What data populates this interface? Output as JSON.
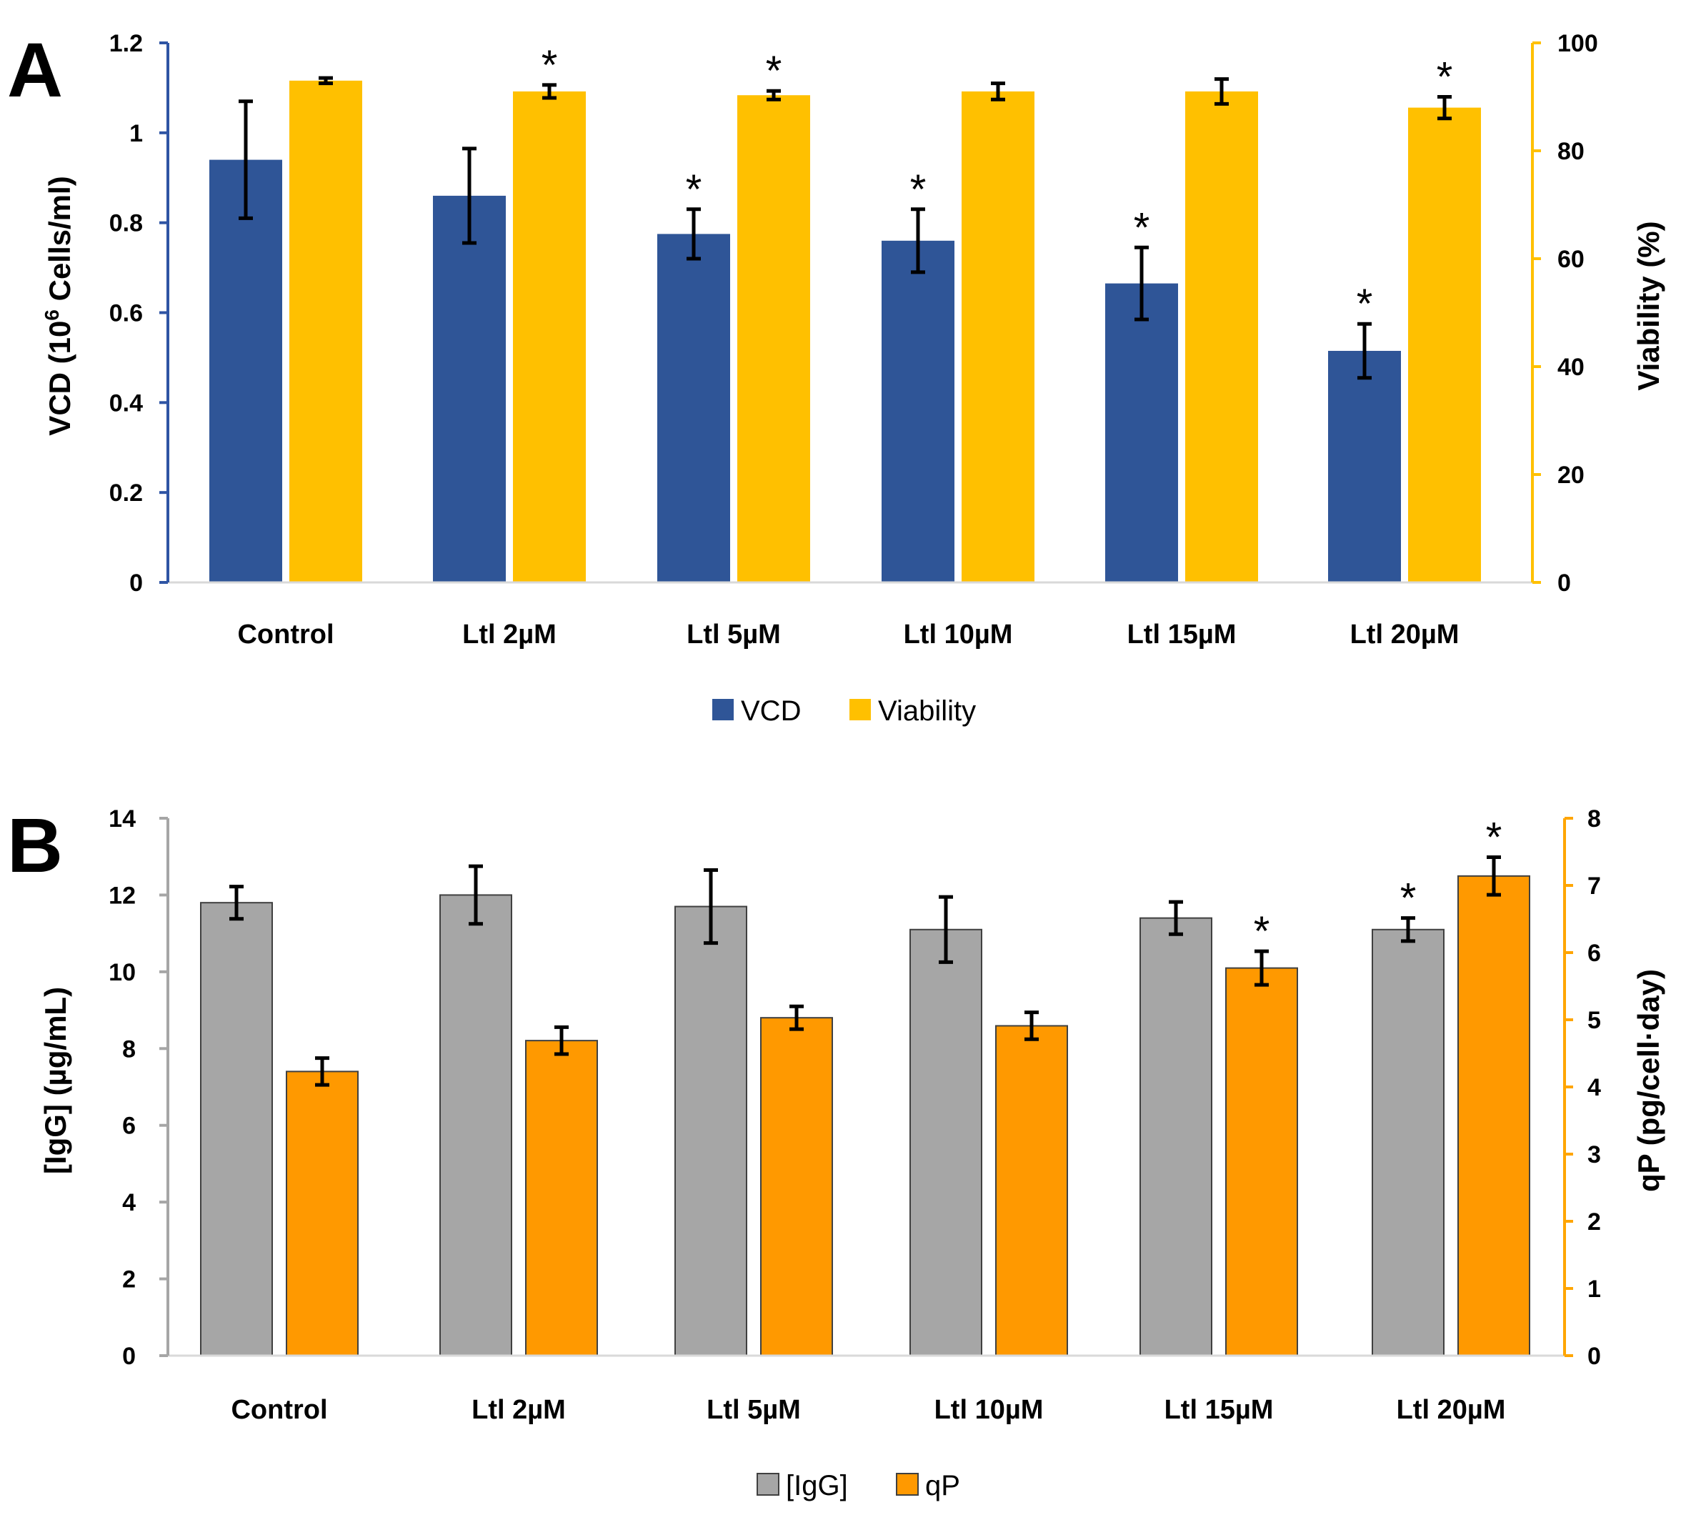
{
  "chart_data": [
    {
      "panel": "A",
      "type": "bar",
      "categories": [
        "Control",
        "Ltl 2µM",
        "Ltl 5µM",
        "Ltl 10µM",
        "Ltl 15µM",
        "Ltl 20µM"
      ],
      "left_axis": {
        "label_prefix": "VCD (10",
        "label_sup": "6",
        "label_suffix": " Cells/ml)",
        "ticks": [
          "0",
          "0.2",
          "0.4",
          "0.6",
          "0.8",
          "1",
          "1.2"
        ],
        "ylim": [
          0,
          1.2
        ],
        "color": "#2f55a4"
      },
      "right_axis": {
        "label": "Viability (%)",
        "ticks": [
          "0",
          "20",
          "40",
          "60",
          "80",
          "100"
        ],
        "ylim": [
          0,
          100
        ],
        "color": "#ffc000"
      },
      "series": [
        {
          "name": "VCD",
          "axis": "left",
          "color": "#2f5597",
          "values": [
            0.94,
            0.86,
            0.775,
            0.76,
            0.665,
            0.515
          ],
          "errors": [
            0.13,
            0.105,
            0.055,
            0.07,
            0.08,
            0.06
          ],
          "significant": [
            false,
            false,
            true,
            true,
            true,
            true
          ]
        },
        {
          "name": "Viability",
          "axis": "right",
          "color": "#ffc000",
          "values": [
            93,
            91,
            90.3,
            91,
            91,
            88
          ],
          "errors": [
            0.5,
            1.2,
            0.8,
            1.5,
            2.3,
            2.0
          ],
          "significant": [
            false,
            true,
            true,
            false,
            false,
            true
          ]
        }
      ],
      "legend": [
        "VCD",
        "Viability"
      ]
    },
    {
      "panel": "B",
      "type": "bar",
      "categories": [
        "Control",
        "Ltl 2µM",
        "Ltl 5µM",
        "Ltl 10µM",
        "Ltl 15µM",
        "Ltl 20µM"
      ],
      "left_axis": {
        "label": "[IgG] (µg/mL)",
        "ticks": [
          "0",
          "2",
          "4",
          "6",
          "8",
          "10",
          "12",
          "14"
        ],
        "ylim": [
          0,
          14
        ],
        "color": "#a6a6a6"
      },
      "right_axis": {
        "label": "qP (pg/cell·day)",
        "ticks": [
          "0",
          "1",
          "2",
          "3",
          "4",
          "5",
          "6",
          "7",
          "8"
        ],
        "ylim": [
          0,
          8
        ],
        "color": "#ffa500"
      },
      "series": [
        {
          "name": "[IgG]",
          "axis": "left",
          "color": "#a6a6a6",
          "values": [
            11.8,
            12.0,
            11.7,
            11.1,
            11.4,
            11.1
          ],
          "errors": [
            0.42,
            0.75,
            0.95,
            0.85,
            0.42,
            0.3
          ],
          "significant": [
            false,
            false,
            false,
            false,
            false,
            true
          ]
        },
        {
          "name": "qP",
          "axis": "right",
          "color": "#ff9900",
          "values": [
            4.23,
            4.69,
            5.03,
            4.91,
            5.77,
            7.14
          ],
          "errors": [
            0.2,
            0.2,
            0.17,
            0.2,
            0.25,
            0.28
          ],
          "significant": [
            false,
            false,
            false,
            false,
            true,
            true
          ]
        }
      ],
      "legend": [
        "[IgG]",
        "qP"
      ]
    }
  ],
  "star_symbol": "*"
}
